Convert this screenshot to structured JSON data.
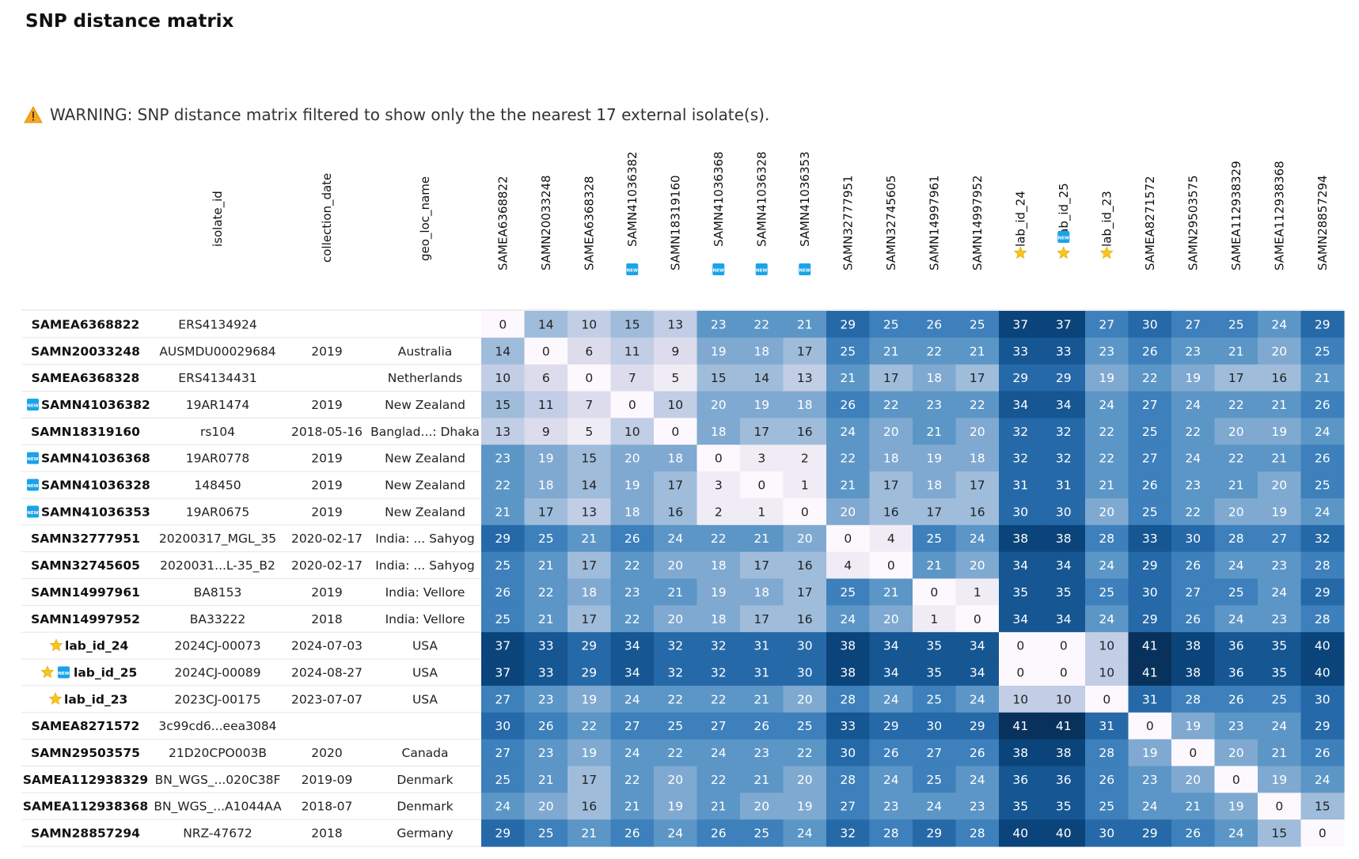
{
  "page": {
    "title": "SNP distance matrix",
    "warning_text": "WARNING: SNP distance matrix filtered to show only the the nearest 17 external isolate(s).",
    "warning_icon": "warning-triangle-icon",
    "new_badge_text": "NEW",
    "new_badge_icon": "new-badge-icon",
    "lab_icon": "star-icon"
  },
  "chart_data": {
    "type": "heatmap",
    "meta_columns": [
      "isolate_id",
      "collection_date",
      "geo_loc_name"
    ],
    "columns": [
      {
        "label": "SAMEA6368822",
        "badge": null
      },
      {
        "label": "SAMN20033248",
        "badge": null
      },
      {
        "label": "SAMEA6368328",
        "badge": null
      },
      {
        "label": "SAMN41036382",
        "badge": "new"
      },
      {
        "label": "SAMN18319160",
        "badge": null
      },
      {
        "label": "SAMN41036368",
        "badge": "new"
      },
      {
        "label": "SAMN41036328",
        "badge": "new"
      },
      {
        "label": "SAMN41036353",
        "badge": "new"
      },
      {
        "label": "SAMN32777951",
        "badge": null
      },
      {
        "label": "SAMN32745605",
        "badge": null
      },
      {
        "label": "SAMN14997961",
        "badge": null
      },
      {
        "label": "SAMN14997952",
        "badge": null
      },
      {
        "label": "lab_id_24",
        "badge": "star"
      },
      {
        "label": "lab_id_25",
        "badge": "new-star"
      },
      {
        "label": "lab_id_23",
        "badge": "star"
      },
      {
        "label": "SAMEA8271572",
        "badge": null
      },
      {
        "label": "SAMN29503575",
        "badge": null
      },
      {
        "label": "SAMEA112938329",
        "badge": null
      },
      {
        "label": "SAMEA112938368",
        "badge": null
      },
      {
        "label": "SAMN28857294",
        "badge": null
      }
    ],
    "rows": [
      {
        "label": "SAMEA6368822",
        "badge": null,
        "isolate_id": "ERS4134924",
        "collection_date": "",
        "geo_loc_name": ""
      },
      {
        "label": "SAMN20033248",
        "badge": null,
        "isolate_id": "AUSMDU00029684",
        "collection_date": "2019",
        "geo_loc_name": "Australia"
      },
      {
        "label": "SAMEA6368328",
        "badge": null,
        "isolate_id": "ERS4134431",
        "collection_date": "",
        "geo_loc_name": "Netherlands"
      },
      {
        "label": "SAMN41036382",
        "badge": "new",
        "isolate_id": "19AR1474",
        "collection_date": "2019",
        "geo_loc_name": "New Zealand"
      },
      {
        "label": "SAMN18319160",
        "badge": null,
        "isolate_id": "rs104",
        "collection_date": "2018-05-16",
        "geo_loc_name": "Banglad...: Dhaka"
      },
      {
        "label": "SAMN41036368",
        "badge": "new",
        "isolate_id": "19AR0778",
        "collection_date": "2019",
        "geo_loc_name": "New Zealand"
      },
      {
        "label": "SAMN41036328",
        "badge": "new",
        "isolate_id": "148450",
        "collection_date": "2019",
        "geo_loc_name": "New Zealand"
      },
      {
        "label": "SAMN41036353",
        "badge": "new",
        "isolate_id": "19AR0675",
        "collection_date": "2019",
        "geo_loc_name": "New Zealand"
      },
      {
        "label": "SAMN32777951",
        "badge": null,
        "isolate_id": "20200317_MGL_35",
        "collection_date": "2020-02-17",
        "geo_loc_name": "India: ... Sahyog"
      },
      {
        "label": "SAMN32745605",
        "badge": null,
        "isolate_id": "2020031...L-35_B2",
        "collection_date": "2020-02-17",
        "geo_loc_name": "India: ... Sahyog"
      },
      {
        "label": "SAMN14997961",
        "badge": null,
        "isolate_id": "BA8153",
        "collection_date": "2019",
        "geo_loc_name": "India: Vellore"
      },
      {
        "label": "SAMN14997952",
        "badge": null,
        "isolate_id": "BA33222",
        "collection_date": "2018",
        "geo_loc_name": "India: Vellore"
      },
      {
        "label": "lab_id_24",
        "badge": "star",
        "isolate_id": "2024CJ-00073",
        "collection_date": "2024-07-03",
        "geo_loc_name": "USA"
      },
      {
        "label": "lab_id_25",
        "badge": "star-new",
        "isolate_id": "2024CJ-00089",
        "collection_date": "2024-08-27",
        "geo_loc_name": "USA"
      },
      {
        "label": "lab_id_23",
        "badge": "star",
        "isolate_id": "2023CJ-00175",
        "collection_date": "2023-07-07",
        "geo_loc_name": "USA"
      },
      {
        "label": "SAMEA8271572",
        "badge": null,
        "isolate_id": "3c99cd6...eea3084",
        "collection_date": "",
        "geo_loc_name": ""
      },
      {
        "label": "SAMN29503575",
        "badge": null,
        "isolate_id": "21D20CPO003B",
        "collection_date": "2020",
        "geo_loc_name": "Canada"
      },
      {
        "label": "SAMEA112938329",
        "badge": null,
        "isolate_id": "BN_WGS_...020C38F",
        "collection_date": "2019-09",
        "geo_loc_name": "Denmark"
      },
      {
        "label": "SAMEA112938368",
        "badge": null,
        "isolate_id": "BN_WGS_...A1044AA",
        "collection_date": "2018-07",
        "geo_loc_name": "Denmark"
      },
      {
        "label": "SAMN28857294",
        "badge": null,
        "isolate_id": "NRZ-47672",
        "collection_date": "2018",
        "geo_loc_name": "Germany"
      }
    ],
    "values": [
      [
        0,
        14,
        10,
        15,
        13,
        23,
        22,
        21,
        29,
        25,
        26,
        25,
        37,
        37,
        27,
        30,
        27,
        25,
        24,
        29
      ],
      [
        14,
        0,
        6,
        11,
        9,
        19,
        18,
        17,
        25,
        21,
        22,
        21,
        33,
        33,
        23,
        26,
        23,
        21,
        20,
        25
      ],
      [
        10,
        6,
        0,
        7,
        5,
        15,
        14,
        13,
        21,
        17,
        18,
        17,
        29,
        29,
        19,
        22,
        19,
        17,
        16,
        21
      ],
      [
        15,
        11,
        7,
        0,
        10,
        20,
        19,
        18,
        26,
        22,
        23,
        22,
        34,
        34,
        24,
        27,
        24,
        22,
        21,
        26
      ],
      [
        13,
        9,
        5,
        10,
        0,
        18,
        17,
        16,
        24,
        20,
        21,
        20,
        32,
        32,
        22,
        25,
        22,
        20,
        19,
        24
      ],
      [
        23,
        19,
        15,
        20,
        18,
        0,
        3,
        2,
        22,
        18,
        19,
        18,
        32,
        32,
        22,
        27,
        24,
        22,
        21,
        26
      ],
      [
        22,
        18,
        14,
        19,
        17,
        3,
        0,
        1,
        21,
        17,
        18,
        17,
        31,
        31,
        21,
        26,
        23,
        21,
        20,
        25
      ],
      [
        21,
        17,
        13,
        18,
        16,
        2,
        1,
        0,
        20,
        16,
        17,
        16,
        30,
        30,
        20,
        25,
        22,
        20,
        19,
        24
      ],
      [
        29,
        25,
        21,
        26,
        24,
        22,
        21,
        20,
        0,
        4,
        25,
        24,
        38,
        38,
        28,
        33,
        30,
        28,
        27,
        32
      ],
      [
        25,
        21,
        17,
        22,
        20,
        18,
        17,
        16,
        4,
        0,
        21,
        20,
        34,
        34,
        24,
        29,
        26,
        24,
        23,
        28
      ],
      [
        26,
        22,
        18,
        23,
        21,
        19,
        18,
        17,
        25,
        21,
        0,
        1,
        35,
        35,
        25,
        30,
        27,
        25,
        24,
        29
      ],
      [
        25,
        21,
        17,
        22,
        20,
        18,
        17,
        16,
        24,
        20,
        1,
        0,
        34,
        34,
        24,
        29,
        26,
        24,
        23,
        28
      ],
      [
        37,
        33,
        29,
        34,
        32,
        32,
        31,
        30,
        38,
        34,
        35,
        34,
        0,
        0,
        10,
        41,
        38,
        36,
        35,
        40
      ],
      [
        37,
        33,
        29,
        34,
        32,
        32,
        31,
        30,
        38,
        34,
        35,
        34,
        0,
        0,
        10,
        41,
        38,
        36,
        35,
        40
      ],
      [
        27,
        23,
        19,
        24,
        22,
        22,
        21,
        20,
        28,
        24,
        25,
        24,
        10,
        10,
        0,
        31,
        28,
        26,
        25,
        30
      ],
      [
        30,
        26,
        22,
        27,
        25,
        27,
        26,
        25,
        33,
        29,
        30,
        29,
        41,
        41,
        31,
        0,
        19,
        23,
        24,
        29
      ],
      [
        27,
        23,
        19,
        24,
        22,
        24,
        23,
        22,
        30,
        26,
        27,
        26,
        38,
        38,
        28,
        19,
        0,
        20,
        21,
        26
      ],
      [
        25,
        21,
        17,
        22,
        20,
        22,
        21,
        20,
        28,
        24,
        25,
        24,
        36,
        36,
        26,
        23,
        20,
        0,
        19,
        24
      ],
      [
        24,
        20,
        16,
        21,
        19,
        21,
        20,
        19,
        27,
        23,
        24,
        23,
        35,
        35,
        25,
        24,
        21,
        19,
        0,
        15
      ],
      [
        29,
        25,
        21,
        26,
        24,
        26,
        25,
        24,
        32,
        28,
        29,
        28,
        40,
        40,
        30,
        29,
        26,
        24,
        15,
        0
      ]
    ],
    "block_boundaries": [
      5,
      8,
      12,
      15
    ],
    "colors": {
      "block_palette": [
        "#fcf8fd",
        "#f0ecf5",
        "#dcdcec",
        "#c2cde6",
        "#a0bcdb",
        "#7fa9d0",
        "#5b96c6",
        "#3d80bb",
        "#2669a8",
        "#155693",
        "#0b447a",
        "#08325c"
      ],
      "text_dark": "#222222",
      "text_light": "#ffffff",
      "new_badge": "#1aa3e8",
      "star": "#f7c51e",
      "warning": "#f5a623"
    }
  }
}
